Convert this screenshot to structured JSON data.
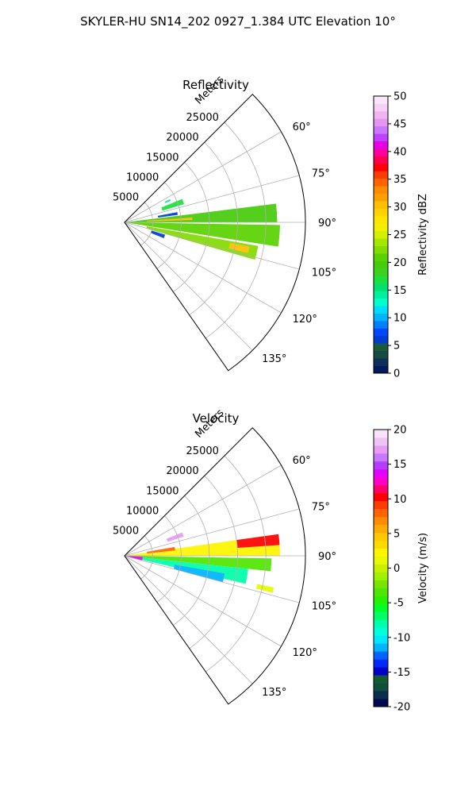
{
  "figure": {
    "title": "SKYLER-HU  SN14_202  0927_1.384 UTC Elevation 10°"
  },
  "chart_data": [
    {
      "type": "polar-sector",
      "title": "Reflectivity",
      "range_label": "Meters",
      "range_ticks": [
        5000,
        10000,
        15000,
        20000,
        25000
      ],
      "range_tick_labels": [
        "5000",
        "10000",
        "15000",
        "20000",
        "25000"
      ],
      "range_max": 32000,
      "azimuth_range": [
        45,
        145
      ],
      "azimuth_ticks": [
        60,
        75,
        90,
        105,
        120,
        135
      ],
      "azimuth_tick_labels": [
        "60°",
        "75°",
        "90°",
        "105°",
        "120°",
        "135°"
      ],
      "grid": true,
      "colorbar": {
        "label": "Reflectivity dBZ",
        "min": 0,
        "max": 50,
        "ticks": [
          0,
          5,
          10,
          15,
          20,
          25,
          30,
          35,
          40,
          45,
          50
        ],
        "tick_labels": [
          "0",
          "5",
          "10",
          "15",
          "20",
          "25",
          "30",
          "35",
          "40",
          "45",
          "50"
        ],
        "colors": [
          "#001a5e",
          "#0d2f58",
          "#164a42",
          "#1b5a3a",
          "#003cd0",
          "#0047ff",
          "#0080ff",
          "#00b4ff",
          "#00dcff",
          "#00ffcc",
          "#00f0a0",
          "#00e070",
          "#1ee03c",
          "#3ad41e",
          "#46cc0a",
          "#5ad200",
          "#82dc00",
          "#a8e600",
          "#d2f000",
          "#f0f000",
          "#ffe600",
          "#ffd200",
          "#ffbe00",
          "#ffa000",
          "#ff8c00",
          "#ff6400",
          "#ff3c00",
          "#ff0000",
          "#ff0050",
          "#ff00a0",
          "#e600e6",
          "#c040ff",
          "#c878ff",
          "#e696f0",
          "#f0b4f0",
          "#f5d2f5",
          "#fae6fa"
        ]
      },
      "echo_bands": [
        {
          "az": [
            83,
            90
          ],
          "range": [
            500,
            27000
          ],
          "value": 20
        },
        {
          "az": [
            91,
            99
          ],
          "range": [
            500,
            27500
          ],
          "value": 21
        },
        {
          "az": [
            100,
            106
          ],
          "range": [
            4000,
            24000
          ],
          "value": 22
        },
        {
          "az": [
            68,
            73
          ],
          "range": [
            7000,
            11000
          ],
          "value": 17
        },
        {
          "az": [
            86,
            88
          ],
          "range": [
            4000,
            12000
          ],
          "value": 30
        },
        {
          "az": [
            101,
            104
          ],
          "range": [
            19000,
            22500
          ],
          "value": 31
        },
        {
          "az": [
            107,
            112
          ],
          "range": [
            5000,
            7500
          ],
          "value": 6
        },
        {
          "az": [
            79,
            82
          ],
          "range": [
            6000,
            9500
          ],
          "value": 6
        },
        {
          "az": [
            63,
            65
          ],
          "range": [
            8000,
            9000
          ],
          "value": 14
        }
      ]
    },
    {
      "type": "polar-sector",
      "title": "Velocity",
      "range_label": "Meters",
      "range_ticks": [
        5000,
        10000,
        15000,
        20000,
        25000
      ],
      "range_tick_labels": [
        "5000",
        "10000",
        "15000",
        "20000",
        "25000"
      ],
      "range_max": 32000,
      "azimuth_range": [
        45,
        145
      ],
      "azimuth_ticks": [
        60,
        75,
        90,
        105,
        120,
        135
      ],
      "azimuth_tick_labels": [
        "60°",
        "75°",
        "90°",
        "105°",
        "120°",
        "135°"
      ],
      "grid": true,
      "colorbar": {
        "label": "Velocity (m/s)",
        "min": -20,
        "max": 20,
        "ticks": [
          -20,
          -15,
          -10,
          -5,
          0,
          5,
          10,
          15,
          20
        ],
        "tick_labels": [
          "-20",
          "-15",
          "-10",
          "-5",
          "0",
          "5",
          "10",
          "15",
          "20"
        ],
        "colors": [
          "#000a50",
          "#0a2d50",
          "#0f503c",
          "#145a32",
          "#0000c8",
          "#0028ff",
          "#0064ff",
          "#00b4ff",
          "#00e6ff",
          "#00ffdc",
          "#00ffaa",
          "#00ff64",
          "#00ff28",
          "#28f000",
          "#50e600",
          "#78e600",
          "#a0f000",
          "#c8f000",
          "#e6fa00",
          "#fff500",
          "#ffdc00",
          "#ffc800",
          "#ffaa00",
          "#ff8c00",
          "#ff6400",
          "#ff3c00",
          "#ff0000",
          "#ff0064",
          "#ff00c8",
          "#e600ff",
          "#b43cff",
          "#c878ff",
          "#e69bf5",
          "#f0c3f5",
          "#fae1fa"
        ]
      },
      "echo_bands": [
        {
          "az": [
            82,
            90
          ],
          "range": [
            500,
            27500
          ],
          "value": 2
        },
        {
          "az": [
            80,
            84
          ],
          "range": [
            4000,
            9000
          ],
          "value": 8
        },
        {
          "az": [
            91,
            96
          ],
          "range": [
            500,
            26000
          ],
          "value": -4
        },
        {
          "az": [
            96,
            103
          ],
          "range": [
            3000,
            22000
          ],
          "value": -8
        },
        {
          "az": [
            100,
            105
          ],
          "range": [
            9000,
            18000
          ],
          "value": -11
        },
        {
          "az": [
            93,
            106
          ],
          "range": [
            500,
            3200
          ],
          "value": 14
        },
        {
          "az": [
            82,
            86
          ],
          "range": [
            20000,
            27500
          ],
          "value": 10
        },
        {
          "az": [
            68,
            72
          ],
          "range": [
            8000,
            11000
          ],
          "value": 17
        },
        {
          "az": [
            102,
            104
          ],
          "range": [
            24000,
            27000
          ],
          "value": 1
        }
      ]
    }
  ]
}
